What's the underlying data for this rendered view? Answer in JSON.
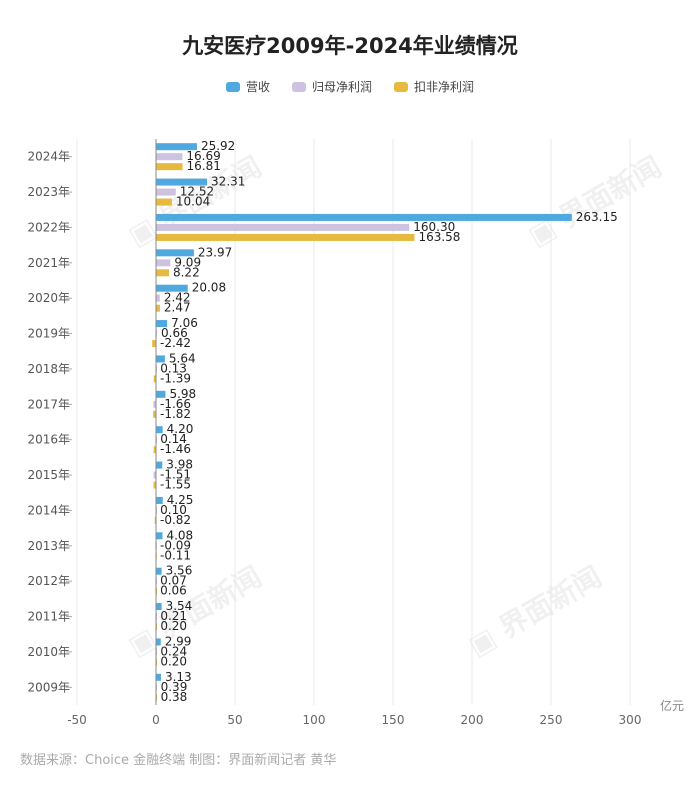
{
  "chart_data": {
    "type": "bar",
    "orientation": "horizontal",
    "title": "九安医疗2009年-2024年业绩情况",
    "unit_label": "亿元",
    "categories": [
      "2024年",
      "2023年",
      "2022年",
      "2021年",
      "2020年",
      "2019年",
      "2018年",
      "2017年",
      "2016年",
      "2015年",
      "2014年",
      "2013年",
      "2012年",
      "2011年",
      "2010年",
      "2009年"
    ],
    "series": [
      {
        "name": "营收",
        "color": "#4fa8e0",
        "values": [
          25.92,
          32.31,
          263.15,
          23.97,
          20.08,
          7.06,
          5.64,
          5.98,
          4.2,
          3.98,
          4.25,
          4.08,
          3.56,
          3.54,
          2.99,
          3.13
        ]
      },
      {
        "name": "归母净利润",
        "color": "#cdc3e0",
        "values": [
          16.69,
          12.52,
          160.3,
          9.09,
          2.42,
          0.66,
          0.13,
          -1.66,
          0.14,
          -1.51,
          0.1,
          -0.09,
          0.07,
          0.21,
          0.24,
          0.39
        ]
      },
      {
        "name": "扣非净利润",
        "color": "#e6b93f",
        "values": [
          16.81,
          10.04,
          163.58,
          8.22,
          2.47,
          -2.42,
          -1.39,
          -1.82,
          -1.46,
          -1.55,
          -0.82,
          -0.11,
          0.06,
          0.2,
          0.2,
          0.38
        ]
      }
    ],
    "xlim": [
      -50,
      300
    ],
    "xticks": [
      "-50",
      "0",
      "50",
      "100",
      "150",
      "200",
      "250",
      "300"
    ],
    "grid": true,
    "legend": "top-center"
  },
  "source": "数据来源：Choice 金融终端 制图：界面新闻记者 黄华",
  "watermark": "界面新闻"
}
